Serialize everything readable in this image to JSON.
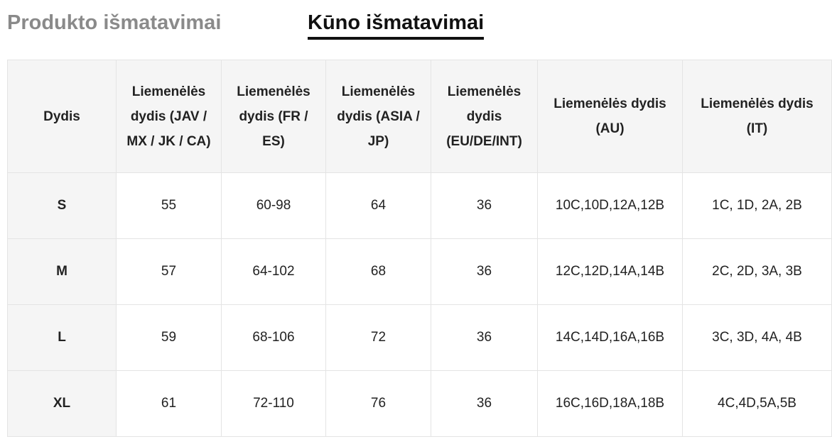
{
  "tabs": [
    {
      "label": "Produkto išmatavimai",
      "active": false
    },
    {
      "label": "Kūno išmatavimai",
      "active": true
    }
  ],
  "colors": {
    "inactive_tab": "#8a8a8a",
    "active_tab": "#111111",
    "header_background": "#f5f5f5",
    "border": "#e4e4e4"
  },
  "table": {
    "headers": [
      "Dydis",
      "Liemenėlės dydis (JAV / MX / JK / CA)",
      "Liemenėlės dydis (FR / ES)",
      "Liemenėlės dydis (ASIA / JP)",
      "Liemenėlės dydis (EU/DE/INT)",
      "Liemenėlės dydis (AU)",
      "Liemenėlės dydis (IT)"
    ],
    "rows": [
      [
        "S",
        "55",
        "60-98",
        "64",
        "36",
        "10C,10D,12A,12B",
        "1C, 1D, 2A, 2B"
      ],
      [
        "M",
        "57",
        "64-102",
        "68",
        "36",
        "12C,12D,14A,14B",
        "2C, 2D, 3A, 3B"
      ],
      [
        "L",
        "59",
        "68-106",
        "72",
        "36",
        "14C,14D,16A,16B",
        "3C, 3D, 4A, 4B"
      ],
      [
        "XL",
        "61",
        "72-110",
        "76",
        "36",
        "16C,16D,18A,18B",
        "4C,4D,5A,5B"
      ]
    ]
  }
}
